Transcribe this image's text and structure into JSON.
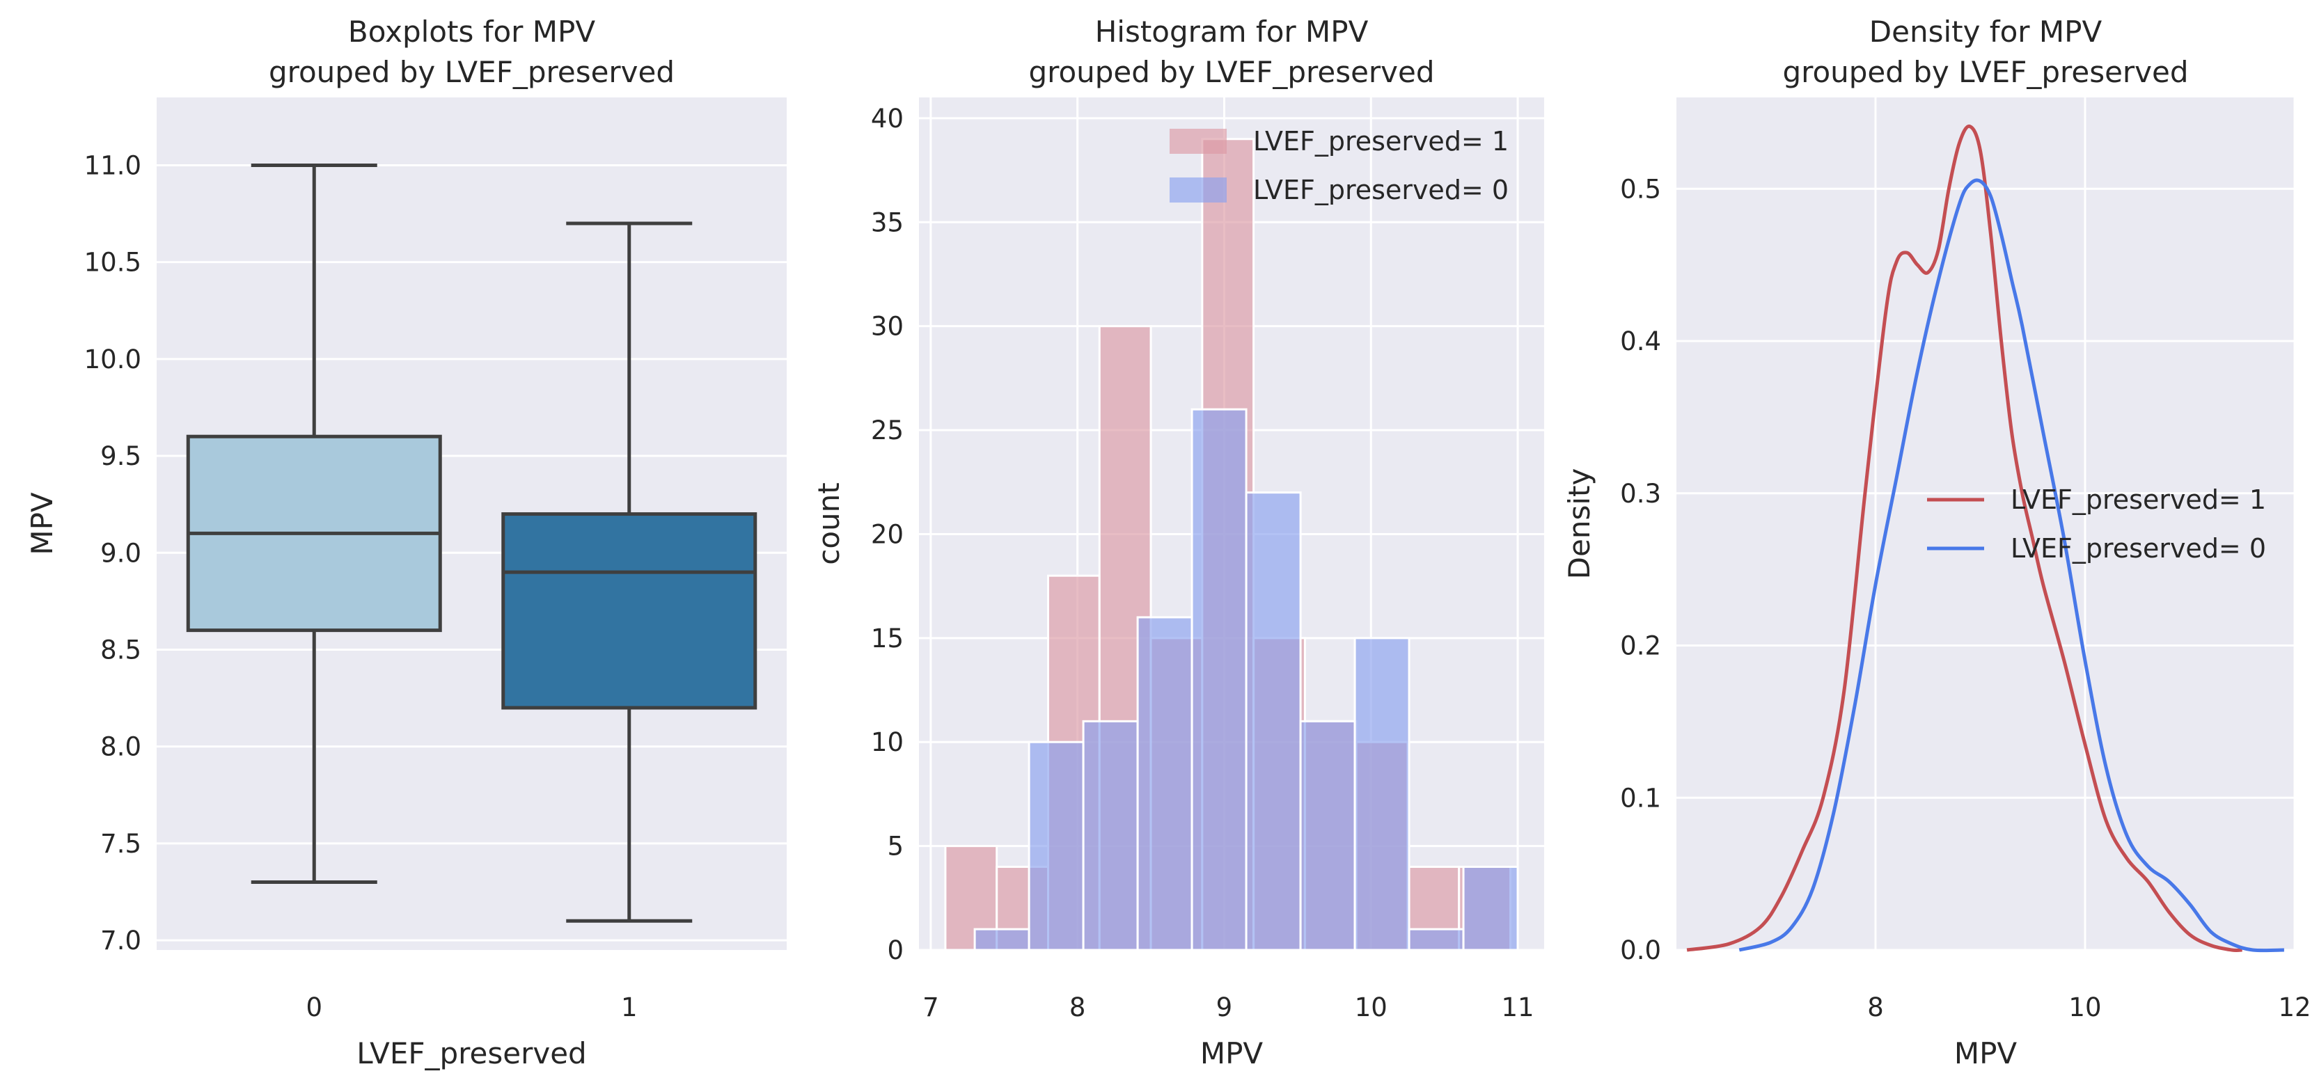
{
  "chart_data": [
    {
      "type": "box",
      "title_lines": [
        "Boxplots for MPV",
        "grouped by LVEF_preserved"
      ],
      "xlabel": "LVEF_preserved",
      "ylabel": "MPV",
      "categories": [
        "0",
        "1"
      ],
      "ylim": [
        6.95,
        11.35
      ],
      "yticks": [
        7.0,
        7.5,
        8.0,
        8.5,
        9.0,
        9.5,
        10.0,
        10.5,
        11.0
      ],
      "ytick_labels": [
        "7.0",
        "7.5",
        "8.0",
        "8.5",
        "9.0",
        "9.5",
        "10.0",
        "10.5",
        "11.0"
      ],
      "boxes": [
        {
          "category": "0",
          "whislo": 7.3,
          "q1": 8.6,
          "median": 9.1,
          "q3": 9.6,
          "whishi": 11.0,
          "color": "#a9c9dc"
        },
        {
          "category": "1",
          "whislo": 7.1,
          "q1": 8.2,
          "median": 8.9,
          "q3": 9.2,
          "whishi": 10.7,
          "color": "#3274a1"
        }
      ]
    },
    {
      "type": "histogram",
      "title_lines": [
        "Histogram for MPV",
        "grouped by LVEF_preserved"
      ],
      "xlabel": "MPV",
      "ylabel": "count",
      "xlim": [
        6.92,
        11.18
      ],
      "ylim": [
        0,
        41
      ],
      "xticks": [
        7,
        8,
        9,
        10,
        11
      ],
      "xtick_labels": [
        "7",
        "8",
        "9",
        "10",
        "11"
      ],
      "yticks": [
        0,
        5,
        10,
        15,
        20,
        25,
        30,
        35,
        40
      ],
      "ytick_labels": [
        "0",
        "5",
        "10",
        "15",
        "20",
        "25",
        "30",
        "35",
        "40"
      ],
      "legend_position": "upper-right",
      "series": [
        {
          "name": "LVEF_preserved= 1",
          "color": "#dc9aa4",
          "opacity": 0.65,
          "bins": [
            {
              "x0": 7.1,
              "x1": 7.45,
              "count": 5
            },
            {
              "x0": 7.45,
              "x1": 7.8,
              "count": 4
            },
            {
              "x0": 7.8,
              "x1": 8.15,
              "count": 18
            },
            {
              "x0": 8.15,
              "x1": 8.5,
              "count": 30
            },
            {
              "x0": 8.5,
              "x1": 8.85,
              "count": 15
            },
            {
              "x0": 8.85,
              "x1": 9.2,
              "count": 39
            },
            {
              "x0": 9.2,
              "x1": 9.55,
              "count": 15
            },
            {
              "x0": 9.55,
              "x1": 9.9,
              "count": 11
            },
            {
              "x0": 9.9,
              "x1": 10.25,
              "count": 10
            },
            {
              "x0": 10.25,
              "x1": 10.6,
              "count": 4
            },
            {
              "x0": 10.6,
              "x1": 10.95,
              "count": 4
            }
          ]
        },
        {
          "name": "LVEF_preserved= 0",
          "color": "#8aa2ee",
          "opacity": 0.65,
          "bins": [
            {
              "x0": 7.3,
              "x1": 7.67,
              "count": 1
            },
            {
              "x0": 7.67,
              "x1": 8.04,
              "count": 10
            },
            {
              "x0": 8.04,
              "x1": 8.41,
              "count": 11
            },
            {
              "x0": 8.41,
              "x1": 8.78,
              "count": 16
            },
            {
              "x0": 8.78,
              "x1": 9.15,
              "count": 26
            },
            {
              "x0": 9.15,
              "x1": 9.52,
              "count": 22
            },
            {
              "x0": 9.52,
              "x1": 9.89,
              "count": 11
            },
            {
              "x0": 9.89,
              "x1": 10.26,
              "count": 15
            },
            {
              "x0": 10.26,
              "x1": 10.63,
              "count": 1
            },
            {
              "x0": 10.63,
              "x1": 11.0,
              "count": 4
            }
          ]
        }
      ]
    },
    {
      "type": "line",
      "title_lines": [
        "Density for MPV",
        "grouped by LVEF_preserved"
      ],
      "xlabel": "MPV",
      "ylabel": "Density",
      "xlim": [
        6.1,
        12.0
      ],
      "ylim": [
        0,
        0.56
      ],
      "xticks": [
        8,
        10,
        12
      ],
      "xtick_labels": [
        "8",
        "10",
        "12"
      ],
      "yticks": [
        0.0,
        0.1,
        0.2,
        0.3,
        0.4,
        0.5
      ],
      "ytick_labels": [
        "0.0",
        "0.1",
        "0.2",
        "0.3",
        "0.4",
        "0.5"
      ],
      "legend_position": "center-right",
      "series": [
        {
          "name": "LVEF_preserved= 1",
          "color": "#c44e52",
          "x": [
            6.2,
            6.6,
            6.9,
            7.1,
            7.3,
            7.5,
            7.7,
            7.9,
            8.1,
            8.2,
            8.3,
            8.4,
            8.5,
            8.6,
            8.7,
            8.8,
            8.9,
            9.0,
            9.1,
            9.2,
            9.3,
            9.4,
            9.5,
            9.6,
            9.8,
            10.0,
            10.2,
            10.4,
            10.6,
            10.8,
            11.0,
            11.2,
            11.4,
            11.5
          ],
          "y": [
            0.0,
            0.004,
            0.015,
            0.035,
            0.065,
            0.1,
            0.17,
            0.3,
            0.42,
            0.452,
            0.458,
            0.45,
            0.445,
            0.46,
            0.5,
            0.53,
            0.541,
            0.525,
            0.47,
            0.4,
            0.34,
            0.3,
            0.27,
            0.24,
            0.19,
            0.135,
            0.085,
            0.06,
            0.045,
            0.025,
            0.01,
            0.003,
            0.0,
            0.0
          ]
        },
        {
          "name": "LVEF_preserved= 0",
          "color": "#4878e8",
          "x": [
            6.7,
            7.0,
            7.2,
            7.4,
            7.6,
            7.8,
            8.0,
            8.2,
            8.4,
            8.6,
            8.8,
            8.9,
            9.0,
            9.1,
            9.2,
            9.3,
            9.4,
            9.6,
            9.8,
            10.0,
            10.2,
            10.4,
            10.6,
            10.8,
            11.0,
            11.2,
            11.4,
            11.6,
            11.9
          ],
          "y": [
            0.0,
            0.005,
            0.015,
            0.04,
            0.09,
            0.16,
            0.24,
            0.31,
            0.38,
            0.44,
            0.49,
            0.503,
            0.505,
            0.495,
            0.47,
            0.44,
            0.41,
            0.34,
            0.27,
            0.19,
            0.12,
            0.075,
            0.055,
            0.045,
            0.03,
            0.012,
            0.004,
            0.0,
            0.0
          ]
        }
      ]
    }
  ]
}
